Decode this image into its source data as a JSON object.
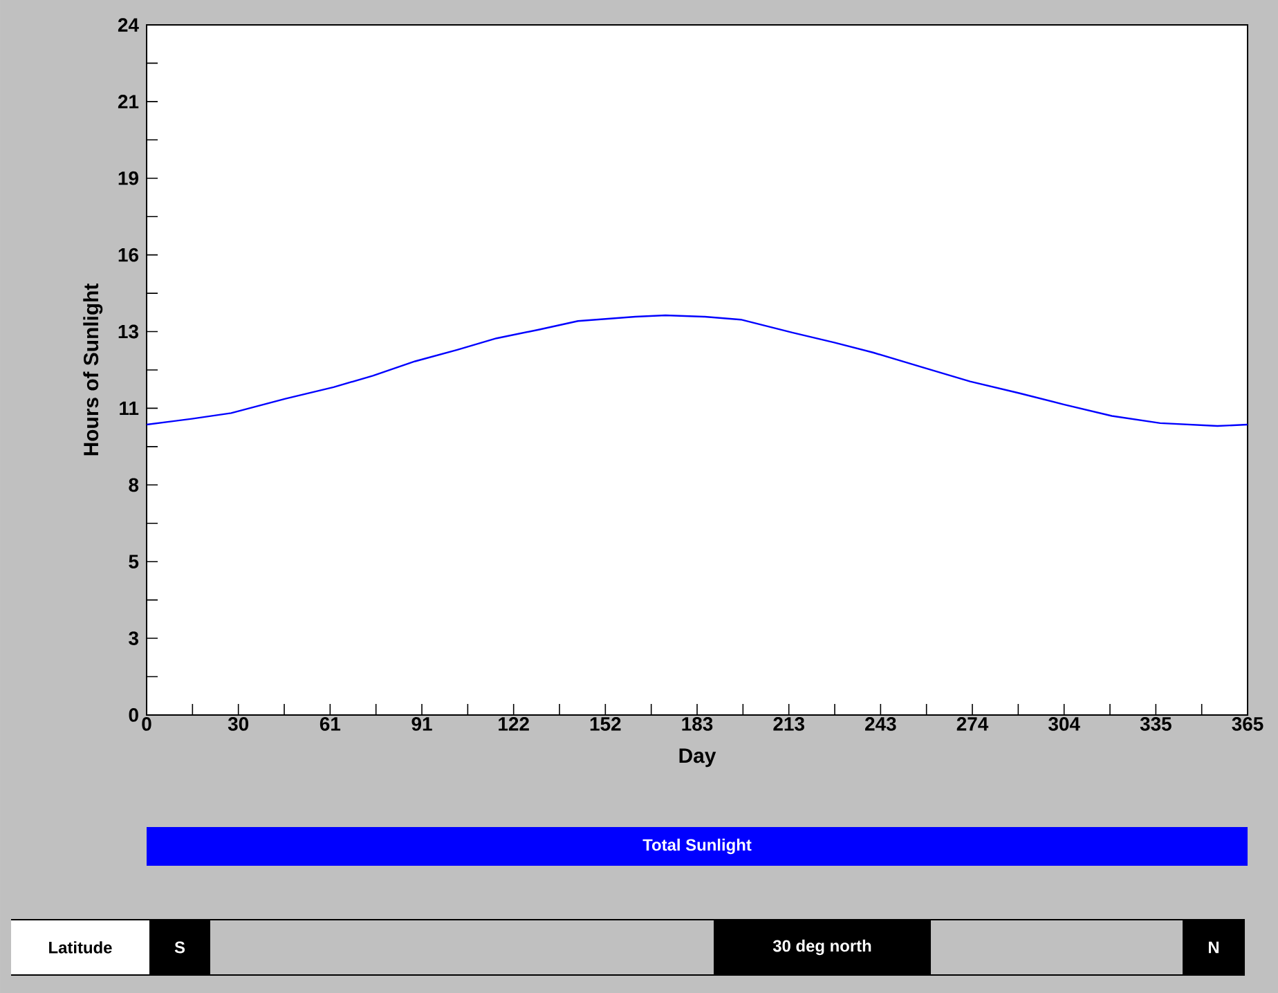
{
  "chart_data": {
    "type": "line",
    "xlabel": "Day",
    "ylabel": "Hours of Sunlight",
    "x": [
      0,
      15,
      28,
      46,
      62,
      75,
      89,
      103,
      116,
      130,
      143,
      162,
      172,
      185,
      197,
      214,
      228,
      241,
      257,
      273,
      289,
      304,
      320,
      336,
      355,
      365
    ],
    "series": [
      {
        "name": "Total Sunlight",
        "color": "#0000ff",
        "values": [
          10.1,
          10.3,
          10.5,
          11.0,
          11.4,
          11.8,
          12.3,
          12.7,
          13.1,
          13.4,
          13.7,
          13.85,
          13.9,
          13.85,
          13.75,
          13.3,
          12.95,
          12.6,
          12.1,
          11.6,
          11.2,
          10.8,
          10.4,
          10.15,
          10.05,
          10.1
        ]
      }
    ],
    "xlim": [
      0,
      365
    ],
    "ylim": [
      0,
      24
    ],
    "xticks": [
      0,
      {
        "value": 30.417,
        "label": "30"
      },
      {
        "value": 60.833,
        "label": "61"
      },
      {
        "value": 91.25,
        "label": "91"
      },
      {
        "value": 121.667,
        "label": "122"
      },
      {
        "value": 152.083,
        "label": "152"
      },
      {
        "value": 182.5,
        "label": "183"
      },
      {
        "value": 212.917,
        "label": "213"
      },
      {
        "value": 243.333,
        "label": "243"
      },
      {
        "value": 273.75,
        "label": "274"
      },
      {
        "value": 304.167,
        "label": "304"
      },
      {
        "value": 334.583,
        "label": "335"
      },
      365
    ],
    "yticks": [
      0,
      {
        "value": 2.667,
        "label": "3"
      },
      {
        "value": 5.333,
        "label": "5"
      },
      8,
      {
        "value": 10.667,
        "label": "11"
      },
      {
        "value": 13.333,
        "label": "13"
      },
      16,
      {
        "value": 18.667,
        "label": "19"
      },
      {
        "value": 21.333,
        "label": "21"
      },
      24
    ],
    "legend": "bottom",
    "annotations": [
      "Latitude",
      "S",
      "30 deg north",
      "N"
    ]
  }
}
